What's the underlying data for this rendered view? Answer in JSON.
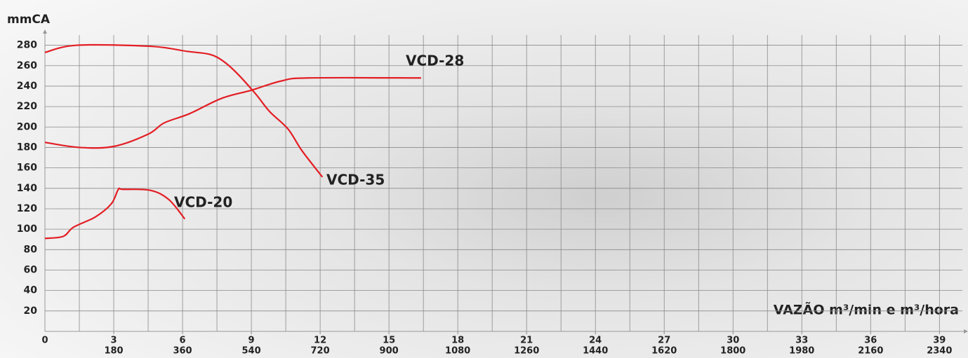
{
  "chart_data": {
    "type": "line",
    "y_label": "mmCA",
    "x_label": "VAZÃO m³/min e m³/hora",
    "xlim": [
      0,
      40
    ],
    "ylim": [
      0,
      290
    ],
    "xticks": [
      0,
      3,
      6,
      9,
      12,
      15,
      18,
      21,
      24,
      27,
      30,
      33,
      36,
      39
    ],
    "xticks2": [
      {
        "value": 3,
        "label": "180"
      },
      {
        "value": 6,
        "label": "360"
      },
      {
        "value": 9,
        "label": "540"
      },
      {
        "value": 12,
        "label": "720"
      },
      {
        "value": 15,
        "label": "900"
      },
      {
        "value": 18,
        "label": "1080"
      },
      {
        "value": 21,
        "label": "1260"
      },
      {
        "value": 24,
        "label": "1440"
      },
      {
        "value": 27,
        "label": "1620"
      },
      {
        "value": 30,
        "label": "1800"
      },
      {
        "value": 33,
        "label": "1980"
      },
      {
        "value": 36,
        "label": "2160"
      },
      {
        "value": 39,
        "label": "2340"
      }
    ],
    "xminor": [
      1.5,
      4.5,
      7.5,
      10.5,
      13.5,
      16.5,
      19.5,
      22.5,
      25.5,
      28.5,
      31.5,
      34.5,
      37.5
    ],
    "yticks": [
      20,
      40,
      60,
      80,
      100,
      120,
      140,
      160,
      180,
      200,
      220,
      240,
      260,
      280
    ],
    "grid": true,
    "series": [
      {
        "name": "VCD-28",
        "color": "#e31e24",
        "x": [
          0,
          1.5,
          3,
          4.5,
          5.2,
          6.3,
          7.7,
          9,
          10.3,
          11.5,
          16.4
        ],
        "values": [
          185,
          180,
          181,
          193,
          204,
          213,
          228,
          236,
          245,
          248,
          248
        ]
      },
      {
        "name": "VCD-35",
        "color": "#e31e24",
        "x": [
          0,
          1.4,
          4.6,
          6.2,
          7.2,
          7.8,
          8.4,
          9.2,
          9.8,
          10.6,
          11.2,
          12.1
        ],
        "values": [
          273,
          280,
          279,
          274,
          271,
          264,
          252,
          232,
          215,
          198,
          177,
          151
        ]
      },
      {
        "name": "VCD-20",
        "color": "#e31e24",
        "x": [
          0,
          0.8,
          1.25,
          2.2,
          2.9,
          3.2,
          3.4,
          4.6,
          5.4,
          6.1
        ],
        "values": [
          91,
          93,
          102,
          112,
          125,
          139,
          139,
          138,
          129,
          110
        ]
      }
    ]
  }
}
